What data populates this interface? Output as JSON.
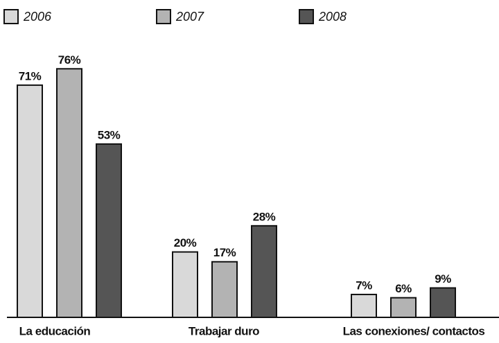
{
  "chart_data": {
    "type": "bar",
    "categories": [
      "La educación",
      "Trabajar duro",
      "Las conexiones/ contactos"
    ],
    "series": [
      {
        "name": "2006",
        "color": "#d9d9d9",
        "values": [
          71,
          20,
          7
        ],
        "value_labels": [
          "71%",
          "20%",
          "7%"
        ]
      },
      {
        "name": "2007",
        "color": "#b3b3b3",
        "values": [
          76,
          17,
          6
        ],
        "value_labels": [
          "76%",
          "17%",
          "6%"
        ]
      },
      {
        "name": "2008",
        "color": "#555555",
        "values": [
          53,
          28,
          9
        ],
        "value_labels": [
          "53%",
          "28%",
          "9%"
        ]
      }
    ],
    "legend": "top"
  }
}
